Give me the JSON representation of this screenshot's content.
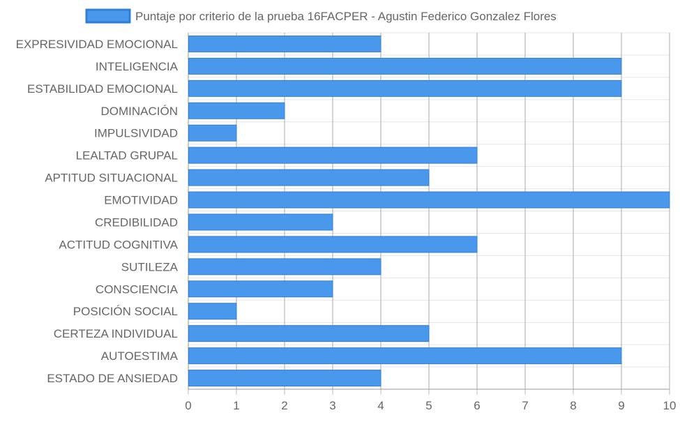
{
  "chart_data": {
    "type": "bar",
    "orientation": "horizontal",
    "legend_position": "top",
    "grid": true,
    "xlim": [
      0,
      10
    ],
    "ticks": [
      0,
      1,
      2,
      3,
      4,
      5,
      6,
      7,
      8,
      9,
      10
    ],
    "categories": [
      "EXPRESIVIDAD EMOCIONAL",
      "INTELIGENCIA",
      "ESTABILIDAD EMOCIONAL",
      "DOMINACIÓN",
      "IMPULSIVIDAD",
      "LEALTAD GRUPAL",
      "APTITUD SITUACIONAL",
      "EMOTIVIDAD",
      "CREDIBILIDAD",
      "ACTITUD COGNITIVA",
      "SUTILEZA",
      "CONSCIENCIA",
      "POSICIÓN SOCIAL",
      "CERTEZA INDIVIDUAL",
      "AUTOESTIMA",
      "ESTADO DE ANSIEDAD"
    ],
    "series": [
      {
        "name": "Puntaje por criterio de la prueba 16FACPER - Agustin Federico Gonzalez Flores",
        "color": "#4a98eb",
        "border_color": "#2f7fd6",
        "values": [
          4,
          9,
          9,
          2,
          1,
          6,
          5,
          10,
          3,
          6,
          4,
          3,
          1,
          5,
          9,
          4
        ]
      }
    ]
  }
}
